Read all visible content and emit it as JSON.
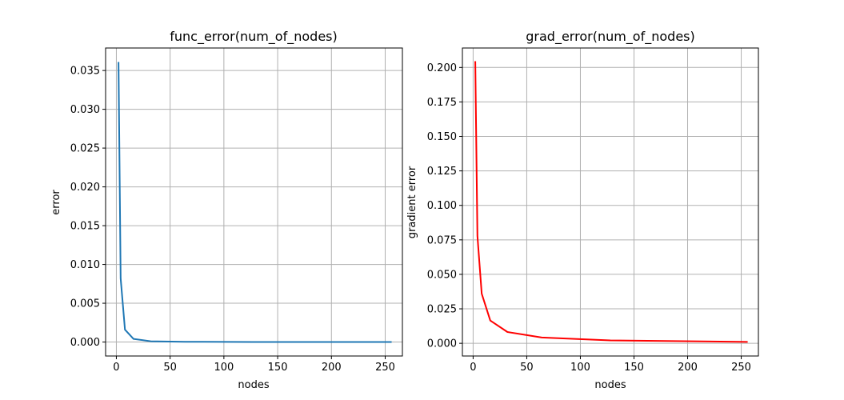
{
  "chart_data": [
    {
      "type": "line",
      "title": "func_error(num_of_nodes)",
      "xlabel": "nodes",
      "ylabel": "error",
      "xlim": [
        -10,
        266
      ],
      "ylim": [
        -0.0018,
        0.0379
      ],
      "xticks": [
        0,
        50,
        100,
        150,
        200,
        250
      ],
      "xtick_labels": [
        "0",
        "50",
        "100",
        "150",
        "200",
        "250"
      ],
      "yticks": [
        0.0,
        0.005,
        0.01,
        0.015,
        0.02,
        0.025,
        0.03,
        0.035
      ],
      "ytick_labels": [
        "0.000",
        "0.005",
        "0.010",
        "0.015",
        "0.020",
        "0.025",
        "0.030",
        "0.035"
      ],
      "grid": true,
      "series": [
        {
          "color": "#1f77b4",
          "x": [
            2,
            4,
            8,
            16,
            32,
            64,
            128,
            256
          ],
          "y": [
            0.0361,
            0.0082,
            0.0016,
            0.0004,
            0.0001,
            3e-05,
            1e-05,
            2e-06
          ]
        }
      ]
    },
    {
      "type": "line",
      "title": "grad_error(num_of_nodes)",
      "xlabel": "nodes",
      "ylabel": "gradient error",
      "xlim": [
        -10,
        266
      ],
      "ylim": [
        -0.0092,
        0.2141
      ],
      "xticks": [
        0,
        50,
        100,
        150,
        200,
        250
      ],
      "xtick_labels": [
        "0",
        "50",
        "100",
        "150",
        "200",
        "250"
      ],
      "yticks": [
        0.0,
        0.025,
        0.05,
        0.075,
        0.1,
        0.125,
        0.15,
        0.175,
        0.2
      ],
      "ytick_labels": [
        "0.000",
        "0.025",
        "0.050",
        "0.075",
        "0.100",
        "0.125",
        "0.150",
        "0.175",
        "0.200"
      ],
      "grid": true,
      "series": [
        {
          "color": "#ff0000",
          "x": [
            2,
            4,
            8,
            16,
            32,
            64,
            128,
            256
          ],
          "y": [
            0.2045,
            0.078,
            0.036,
            0.0165,
            0.0082,
            0.0042,
            0.0021,
            0.001
          ]
        }
      ]
    }
  ]
}
